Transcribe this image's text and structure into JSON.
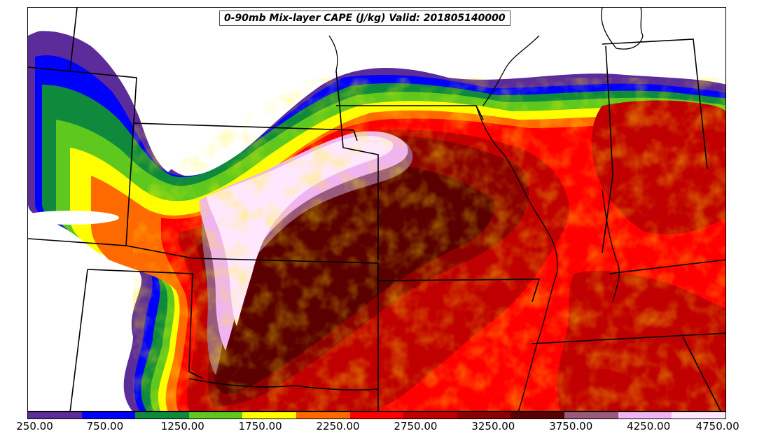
{
  "title": "0-90mb Mix-layer CAPE (J/kg) Valid: 201805140000",
  "colorbar": {
    "colors": [
      "#5b2c9a",
      "#0000ff",
      "#0f8a3c",
      "#5fc81e",
      "#ffff00",
      "#ff6a00",
      "#ff0000",
      "#c00000",
      "#8c0000",
      "#5a0000",
      "#9a5a7a",
      "#f0b4f0",
      "#ffe8ff"
    ],
    "tick_labels": [
      "250.00",
      "750.00",
      "1250.00",
      "1750.00",
      "2250.00",
      "2750.00",
      "3250.00",
      "3750.00",
      "4250.00",
      "4750.00"
    ],
    "min": 250,
    "max": 4750,
    "interval": 250
  }
}
